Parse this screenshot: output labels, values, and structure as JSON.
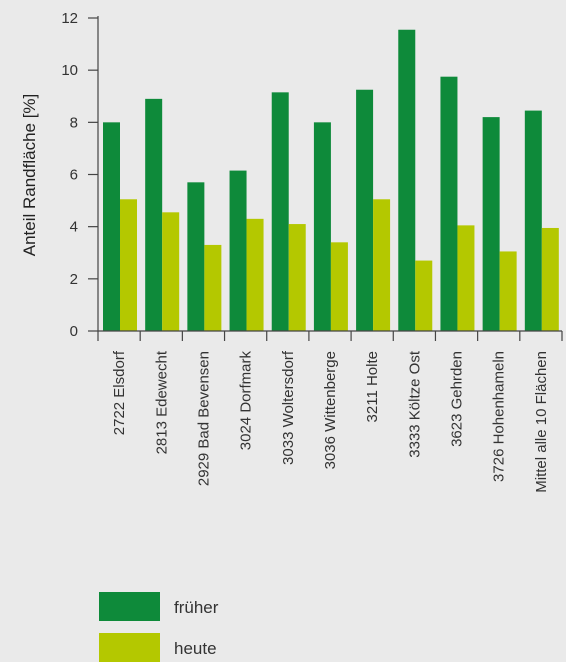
{
  "chart_data": {
    "type": "bar",
    "ylabel": "Anteil Randfläche [%]",
    "xlabel": "",
    "ylim": [
      0,
      12
    ],
    "yticks": [
      0,
      2,
      4,
      6,
      8,
      10,
      12
    ],
    "categories": [
      "2722 Elsdorf",
      "2813 Edewecht",
      "2929 Bad Bevensen",
      "3024 Dorfmark",
      "3033 Woltersdorf",
      "3036 Wittenberge",
      "3211 Holte",
      "3333 Költze Ost",
      "3623 Gehrden",
      "3726 Hohenhameln",
      "Mittel alle 10 Flächen"
    ],
    "series": [
      {
        "name": "früher",
        "color": "#0e8a3a",
        "values": [
          8.0,
          8.9,
          5.7,
          6.15,
          9.15,
          8.0,
          9.25,
          11.55,
          9.75,
          8.2,
          8.45
        ]
      },
      {
        "name": "heute",
        "color": "#b4c800",
        "values": [
          5.05,
          4.55,
          3.3,
          4.3,
          4.1,
          3.4,
          5.05,
          2.7,
          4.05,
          3.05,
          3.95
        ]
      }
    ],
    "legend_position": "bottom-left",
    "grid": false
  }
}
